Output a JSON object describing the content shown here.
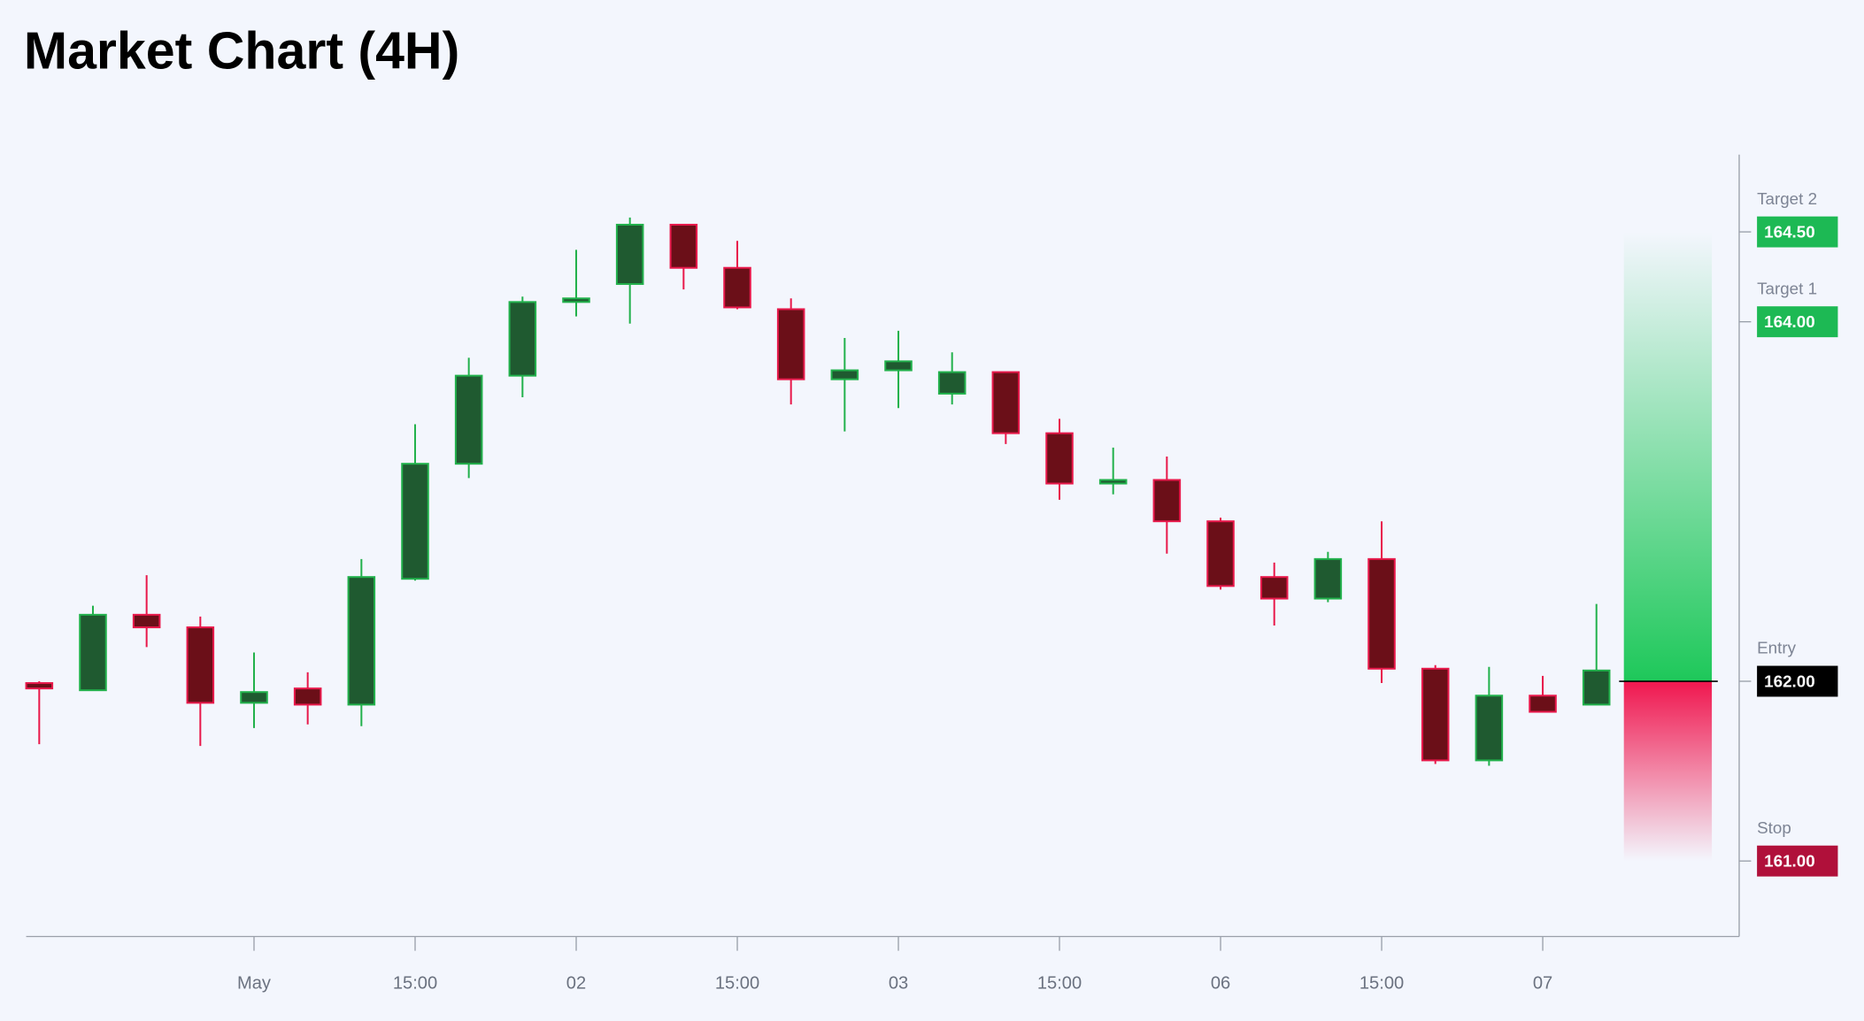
{
  "chart_data": {
    "type": "candlestick",
    "title": "Market Chart (4H)",
    "categories": [
      null,
      null,
      null,
      null,
      "May",
      null,
      null,
      "15:00",
      null,
      null,
      "02",
      null,
      null,
      "15:00",
      null,
      null,
      "03",
      null,
      null,
      "15:00",
      null,
      null,
      "06",
      null,
      null,
      "15:00",
      null,
      null,
      "07",
      null
    ],
    "open": [
      161.99,
      161.95,
      162.37,
      162.3,
      161.88,
      161.96,
      161.87,
      162.57,
      163.21,
      163.7,
      164.11,
      164.21,
      164.54,
      164.3,
      164.07,
      163.68,
      163.73,
      163.6,
      163.72,
      163.38,
      163.1,
      163.12,
      162.89,
      162.58,
      162.46,
      162.68,
      162.07,
      161.56,
      161.92,
      161.87
    ],
    "high": [
      162.0,
      162.42,
      162.59,
      162.36,
      162.16,
      162.05,
      162.68,
      163.43,
      163.8,
      164.14,
      164.4,
      164.58,
      164.54,
      164.45,
      164.13,
      163.91,
      163.95,
      163.83,
      163.72,
      163.46,
      163.3,
      163.25,
      162.91,
      162.66,
      162.72,
      162.89,
      162.09,
      162.08,
      162.03,
      162.43
    ],
    "low": [
      161.65,
      161.95,
      162.19,
      161.64,
      161.74,
      161.76,
      161.75,
      162.56,
      163.13,
      163.58,
      164.03,
      163.99,
      164.18,
      164.07,
      163.54,
      163.39,
      163.52,
      163.54,
      163.32,
      163.01,
      163.04,
      162.71,
      162.51,
      162.31,
      162.44,
      161.99,
      161.54,
      161.53,
      161.83,
      161.87
    ],
    "close": [
      161.96,
      162.37,
      162.3,
      161.88,
      161.94,
      161.87,
      162.58,
      163.21,
      163.7,
      164.11,
      164.13,
      164.54,
      164.3,
      164.08,
      163.68,
      163.73,
      163.78,
      163.72,
      163.38,
      163.1,
      163.12,
      162.89,
      162.53,
      162.46,
      162.68,
      162.07,
      161.56,
      161.92,
      161.83,
      162.06
    ],
    "up_color": "#22b14c",
    "down_color": "#e8194b",
    "up_fill": "#1f5a30",
    "down_fill": "#6b0f18",
    "ylim": [
      160.58,
      164.93
    ],
    "levels": [
      {
        "name": "Target 2",
        "value": 164.5,
        "label": "164.50",
        "color": "#1db954"
      },
      {
        "name": "Target 1",
        "value": 164.0,
        "label": "164.00",
        "color": "#1db954"
      },
      {
        "name": "Entry",
        "value": 162.0,
        "label": "162.00",
        "color": "#000000"
      },
      {
        "name": "Stop",
        "value": 161.0,
        "label": "161.00",
        "color": "#b0103a"
      }
    ]
  }
}
